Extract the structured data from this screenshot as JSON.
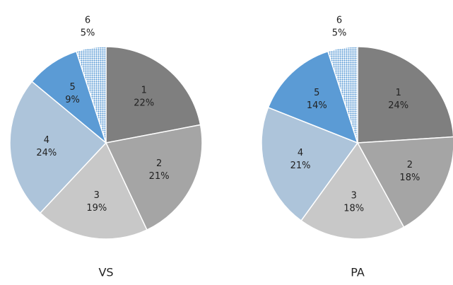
{
  "chart_data": [
    {
      "type": "pie",
      "title": "VS",
      "categories": [
        "1",
        "2",
        "3",
        "4",
        "5",
        "6"
      ],
      "values": [
        22,
        21,
        19,
        24,
        9,
        5
      ],
      "value_labels": [
        "22%",
        "21%",
        "19%",
        "24%",
        "9%",
        "5%"
      ],
      "colors": [
        "#7f7f7f",
        "#a5a5a5",
        "#c8c8c8",
        "#adc4da",
        "#5b9bd5",
        "#5b9bd5"
      ],
      "patterned": [
        false,
        false,
        false,
        false,
        false,
        true
      ]
    },
    {
      "type": "pie",
      "title": "PA",
      "categories": [
        "1",
        "2",
        "3",
        "4",
        "5",
        "6"
      ],
      "values": [
        24,
        18,
        18,
        21,
        14,
        5
      ],
      "value_labels": [
        "24%",
        "18%",
        "18%",
        "21%",
        "14%",
        "5%"
      ],
      "colors": [
        "#7f7f7f",
        "#a5a5a5",
        "#c8c8c8",
        "#adc4da",
        "#5b9bd5",
        "#5b9bd5"
      ],
      "patterned": [
        false,
        false,
        false,
        false,
        false,
        true
      ]
    }
  ]
}
